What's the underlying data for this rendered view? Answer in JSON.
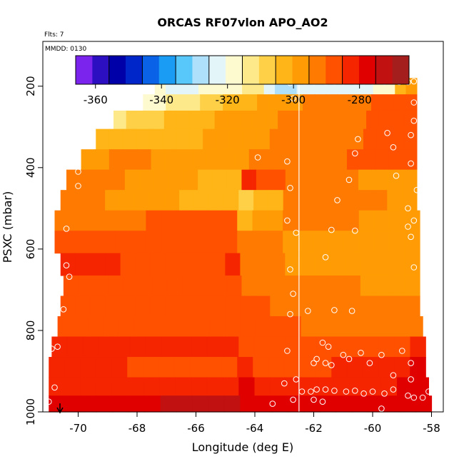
{
  "chart_data": {
    "type": "heatmap",
    "title": "ORCAS RF07vlon APO_AO2",
    "subtitle": "Flts: 7",
    "annotation": "MMDD: 0130",
    "xlabel": "Longitude (deg E)",
    "ylabel": "PSXC (mbar)",
    "xlim": [
      -71.2,
      -57.6
    ],
    "ylim": [
      1000,
      90
    ],
    "y_inverted": true,
    "x_ticks": [
      -70,
      -68,
      -66,
      -64,
      -62,
      -60,
      -58
    ],
    "y_ticks": [
      200,
      400,
      600,
      800,
      1000
    ],
    "colorbar": {
      "min": -366,
      "max": -265,
      "ticks": [
        -360,
        -340,
        -320,
        -300,
        -280
      ],
      "colors": [
        "#7b24ee",
        "#2b0fc0",
        "#0000a8",
        "#0026c9",
        "#0a63e6",
        "#1a9cf5",
        "#58c8fb",
        "#aee0fb",
        "#e4f5fa",
        "#fefad0",
        "#fee98a",
        "#fed048",
        "#ffb517",
        "#ff9c05",
        "#ff7a00",
        "#ff5100",
        "#f52500",
        "#e00000",
        "#c11111",
        "#a51e1e"
      ]
    },
    "vertical_line_x": -62.5,
    "bands": [
      {
        "p": 200,
        "x0": -67.4,
        "x1": -58.5,
        "values": [
          -320,
          -321,
          -322,
          -321,
          -320,
          -320,
          -318,
          -316,
          -314,
          -312,
          -322,
          -326,
          -326,
          -325,
          -324,
          -324,
          -323,
          -322,
          -322,
          -322,
          -320,
          -320,
          -305,
          -300
        ]
      },
      {
        "p": 240,
        "x0": -67.8,
        "x1": -58.5,
        "values": [
          -318,
          -316,
          -314,
          -313,
          -311,
          -309,
          -307,
          -305,
          -303,
          -301,
          -300,
          -298,
          -297,
          -296,
          -295,
          -294,
          -293,
          -292,
          -292,
          -291,
          -290,
          -290,
          -290,
          -289
        ]
      },
      {
        "p": 280,
        "x0": -68.8,
        "x1": -58.5,
        "values": [
          -312,
          -310,
          -308,
          -306,
          -304,
          -303,
          -302,
          -301,
          -300,
          -299,
          -298,
          -297,
          -296,
          -295,
          -294,
          -293,
          -292,
          -292,
          -291,
          -291,
          -290,
          -290,
          -290,
          -290
        ]
      },
      {
        "p": 330,
        "x0": -69.4,
        "x1": -58.5,
        "values": [
          -304,
          -304,
          -303,
          -303,
          -302,
          -302,
          -301,
          -301,
          -300,
          -299,
          -298,
          -297,
          -296,
          -295,
          -294,
          -293,
          -292,
          -292,
          -291,
          -291,
          -290,
          -290,
          -290,
          -290
        ]
      },
      {
        "p": 380,
        "x0": -69.9,
        "x1": -58.5,
        "values": [
          -296,
          -296,
          -295,
          -295,
          -295,
          -296,
          -297,
          -298,
          -299,
          -299,
          -298,
          -296,
          -295,
          -294,
          -293,
          -292,
          -292,
          -291,
          -291,
          -290,
          -290,
          -290,
          -290,
          -290
        ]
      },
      {
        "p": 430,
        "x0": -70.4,
        "x1": -58.5,
        "values": [
          -294,
          -294,
          -294,
          -295,
          -296,
          -296,
          -297,
          -298,
          -300,
          -301,
          -302,
          -303,
          -285,
          -288,
          -290,
          -291,
          -292,
          -293,
          -294,
          -295,
          -296,
          -297,
          -298,
          -299
        ]
      },
      {
        "p": 480,
        "x0": -70.6,
        "x1": -58.5,
        "values": [
          -294,
          -294,
          -295,
          -296,
          -297,
          -298,
          -299,
          -300,
          -301,
          -302,
          -303,
          -304,
          -306,
          -305,
          -302,
          -293,
          -292,
          -292,
          -293,
          -293,
          -294,
          -295,
          -296,
          -297
        ]
      },
      {
        "p": 530,
        "x0": -70.8,
        "x1": -58.4,
        "values": [
          -292,
          -292,
          -292,
          -291,
          -291,
          -291,
          -290,
          -290,
          -290,
          -290,
          -290,
          -290,
          -305,
          -300,
          -296,
          -294,
          -294,
          -294,
          -295,
          -295,
          -296,
          -297,
          -298,
          -299
        ]
      },
      {
        "p": 580,
        "x0": -70.8,
        "x1": -58.4,
        "values": [
          -288,
          -288,
          -288,
          -288,
          -288,
          -288,
          -288,
          -289,
          -289,
          -289,
          -289,
          -288,
          -292,
          -294,
          -295,
          -296,
          -296,
          -297,
          -297,
          -298,
          -298,
          -299,
          -299,
          -299
        ]
      },
      {
        "p": 640,
        "x0": -70.6,
        "x1": -58.4,
        "values": [
          -282,
          -283,
          -284,
          -285,
          -286,
          -287,
          -288,
          -288,
          -288,
          -288,
          -286,
          -284,
          -294,
          -295,
          -295,
          -296,
          -296,
          -296,
          -297,
          -297,
          -297,
          -298,
          -298,
          -298
        ]
      },
      {
        "p": 690,
        "x0": -70.5,
        "x1": -58.4,
        "values": [
          -288,
          -289,
          -290,
          -290,
          -290,
          -290,
          -289,
          -289,
          -289,
          -289,
          -289,
          -289,
          -292,
          -293,
          -293,
          -294,
          -294,
          -295,
          -295,
          -295,
          -296,
          -296,
          -296,
          -296
        ]
      },
      {
        "p": 740,
        "x0": -70.6,
        "x1": -58.4,
        "values": [
          -286,
          -286,
          -287,
          -287,
          -287,
          -287,
          -287,
          -287,
          -287,
          -287,
          -287,
          -287,
          -289,
          -290,
          -291,
          -291,
          -292,
          -292,
          -293,
          -293,
          -294,
          -294,
          -294,
          -294
        ]
      },
      {
        "p": 790,
        "x0": -70.7,
        "x1": -58.3,
        "values": [
          -286,
          -286,
          -286,
          -286,
          -286,
          -286,
          -286,
          -286,
          -286,
          -286,
          -286,
          -286,
          -287,
          -288,
          -289,
          -290,
          -291,
          -291,
          -292,
          -292,
          -292,
          -292,
          -292,
          -292
        ]
      },
      {
        "p": 840,
        "x0": -70.9,
        "x1": -58.2,
        "values": [
          -281,
          -282,
          -283,
          -284,
          -284,
          -285,
          -285,
          -285,
          -285,
          -285,
          -285,
          -285,
          -286,
          -287,
          -288,
          -289,
          -290,
          -290,
          -290,
          -289,
          -288,
          -287,
          -286,
          -285
        ]
      },
      {
        "p": 890,
        "x0": -71.0,
        "x1": -58.2,
        "values": [
          -282,
          -283,
          -284,
          -285,
          -285,
          -286,
          -286,
          -286,
          -286,
          -286,
          -286,
          -286,
          -285,
          -286,
          -287,
          -287,
          -287,
          -286,
          -285,
          -284,
          -283,
          -282,
          -281,
          -280
        ]
      },
      {
        "p": 940,
        "x0": -71.0,
        "x1": -58.1,
        "values": [
          -281,
          -281,
          -282,
          -282,
          -283,
          -283,
          -283,
          -283,
          -283,
          -283,
          -283,
          -284,
          -280,
          -281,
          -282,
          -283,
          -283,
          -283,
          -282,
          -282,
          -281,
          -281,
          -280,
          -280
        ]
      },
      {
        "p": 980,
        "x0": -71.0,
        "x1": -58.0,
        "values": [
          -277,
          -277,
          -277,
          -277,
          -276,
          -276,
          -276,
          -275,
          -275,
          -274,
          -274,
          -274,
          -277,
          -277,
          -278,
          -278,
          -278,
          -278,
          -278,
          -278,
          -278,
          -278,
          -278,
          -278
        ]
      }
    ],
    "points": [
      {
        "x": -67.4,
        "p": 190
      },
      {
        "x": -66.7,
        "p": 180
      },
      {
        "x": -62.8,
        "p": 192
      },
      {
        "x": -62.3,
        "p": 190
      },
      {
        "x": -62.0,
        "p": 190
      },
      {
        "x": -61.6,
        "p": 190
      },
      {
        "x": -61.3,
        "p": 190
      },
      {
        "x": -61.0,
        "p": 190
      },
      {
        "x": -60.6,
        "p": 190
      },
      {
        "x": -60.3,
        "p": 190
      },
      {
        "x": -60.0,
        "p": 190
      },
      {
        "x": -59.6,
        "p": 190
      },
      {
        "x": -59.1,
        "p": 190
      },
      {
        "x": -58.8,
        "p": 190
      },
      {
        "x": -58.6,
        "p": 188
      },
      {
        "x": -62.7,
        "p": 230
      },
      {
        "x": -58.6,
        "p": 240
      },
      {
        "x": -58.6,
        "p": 285
      },
      {
        "x": -59.5,
        "p": 315
      },
      {
        "x": -58.7,
        "p": 320
      },
      {
        "x": -60.5,
        "p": 330
      },
      {
        "x": -59.3,
        "p": 350
      },
      {
        "x": -60.6,
        "p": 365
      },
      {
        "x": -63.9,
        "p": 375
      },
      {
        "x": -62.9,
        "p": 385
      },
      {
        "x": -58.7,
        "p": 390
      },
      {
        "x": -70.0,
        "p": 410
      },
      {
        "x": -59.2,
        "p": 420
      },
      {
        "x": -60.8,
        "p": 430
      },
      {
        "x": -70.0,
        "p": 445
      },
      {
        "x": -62.8,
        "p": 450
      },
      {
        "x": -58.5,
        "p": 455
      },
      {
        "x": -61.2,
        "p": 480
      },
      {
        "x": -58.8,
        "p": 500
      },
      {
        "x": -62.9,
        "p": 530
      },
      {
        "x": -58.6,
        "p": 530
      },
      {
        "x": -62.6,
        "p": 560
      },
      {
        "x": -58.7,
        "p": 570
      },
      {
        "x": -70.4,
        "p": 550
      },
      {
        "x": -61.4,
        "p": 553
      },
      {
        "x": -60.6,
        "p": 555
      },
      {
        "x": -58.8,
        "p": 545
      },
      {
        "x": -70.4,
        "p": 640
      },
      {
        "x": -70.3,
        "p": 668
      },
      {
        "x": -62.8,
        "p": 650
      },
      {
        "x": -61.6,
        "p": 620
      },
      {
        "x": -58.6,
        "p": 645
      },
      {
        "x": -62.7,
        "p": 710
      },
      {
        "x": -70.8,
        "p": 750
      },
      {
        "x": -70.5,
        "p": 748
      },
      {
        "x": -62.8,
        "p": 760
      },
      {
        "x": -62.2,
        "p": 752
      },
      {
        "x": -61.3,
        "p": 750
      },
      {
        "x": -60.7,
        "p": 752
      },
      {
        "x": -70.9,
        "p": 845
      },
      {
        "x": -70.7,
        "p": 840
      },
      {
        "x": -62.9,
        "p": 850
      },
      {
        "x": -62.0,
        "p": 880
      },
      {
        "x": -61.9,
        "p": 870
      },
      {
        "x": -61.6,
        "p": 880
      },
      {
        "x": -61.4,
        "p": 885
      },
      {
        "x": -61.0,
        "p": 860
      },
      {
        "x": -60.8,
        "p": 870
      },
      {
        "x": -60.4,
        "p": 855
      },
      {
        "x": -60.1,
        "p": 880
      },
      {
        "x": -59.7,
        "p": 860
      },
      {
        "x": -59.3,
        "p": 910
      },
      {
        "x": -58.7,
        "p": 880
      },
      {
        "x": -58.7,
        "p": 920
      },
      {
        "x": -61.5,
        "p": 840
      },
      {
        "x": -61.7,
        "p": 830
      },
      {
        "x": -59.0,
        "p": 850
      },
      {
        "x": -70.8,
        "p": 940
      },
      {
        "x": -63.0,
        "p": 930
      },
      {
        "x": -62.6,
        "p": 920
      },
      {
        "x": -62.4,
        "p": 950
      },
      {
        "x": -62.1,
        "p": 950
      },
      {
        "x": -61.9,
        "p": 945
      },
      {
        "x": -61.6,
        "p": 945
      },
      {
        "x": -61.3,
        "p": 948
      },
      {
        "x": -60.9,
        "p": 950
      },
      {
        "x": -60.6,
        "p": 948
      },
      {
        "x": -60.3,
        "p": 955
      },
      {
        "x": -60.0,
        "p": 950
      },
      {
        "x": -59.6,
        "p": 955
      },
      {
        "x": -59.3,
        "p": 945
      },
      {
        "x": -58.6,
        "p": 965
      },
      {
        "x": -58.3,
        "p": 965
      },
      {
        "x": -58.1,
        "p": 950
      },
      {
        "x": -62.0,
        "p": 970
      },
      {
        "x": -61.7,
        "p": 975
      },
      {
        "x": -59.7,
        "p": 992
      },
      {
        "x": -63.4,
        "p": 980
      },
      {
        "x": -62.7,
        "p": 970
      },
      {
        "x": -71.0,
        "p": 975
      },
      {
        "x": -58.8,
        "p": 960
      }
    ]
  }
}
